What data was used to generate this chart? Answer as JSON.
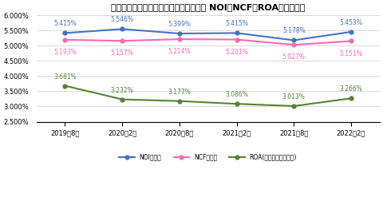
{
  "title": "日本アコモデーションファンド投資法人 NOI・NCF・ROA利回り推移",
  "x_labels": [
    "2019年8月",
    "2020年2月",
    "2020年8月",
    "2021年2月",
    "2021年8月",
    "2022年2月"
  ],
  "noi": [
    5.415,
    5.546,
    5.399,
    5.415,
    5.178,
    5.453
  ],
  "ncf": [
    5.193,
    5.157,
    5.214,
    5.201,
    5.027,
    5.151
  ],
  "roa": [
    3.681,
    3.232,
    3.177,
    3.086,
    3.013,
    3.266
  ],
  "noi_labels": [
    "5.415%",
    "5.546%",
    "5.399%",
    "5.415%",
    "5.178%",
    "5.453%"
  ],
  "ncf_labels": [
    "5.193%",
    "5.157%",
    "5.214%",
    "5.201%",
    "5.027%",
    "5.151%"
  ],
  "roa_labels": [
    "3.681%",
    "3.232%",
    "3.177%",
    "3.086%",
    "3.013%",
    "3.266%"
  ],
  "noi_color": "#4472C4",
  "ncf_color": "#FF69B4",
  "roa_color": "#548235",
  "ylim_min": 2.5,
  "ylim_max": 6.0,
  "yticks": [
    2.5,
    3.0,
    3.5,
    4.0,
    4.5,
    5.0,
    5.5,
    6.0
  ],
  "legend_noi": "NOI利回り",
  "legend_ncf": "NCF利回り",
  "legend_roa": "ROA(総資産経常利益率)",
  "bg_color": "#FFFFFF"
}
